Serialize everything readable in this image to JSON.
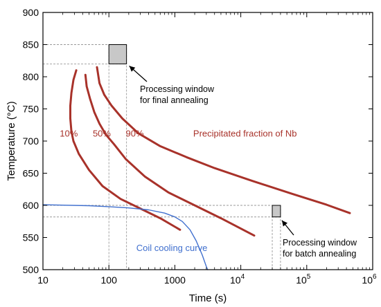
{
  "chart_data": {
    "type": "line",
    "xlabel": "Time (s)",
    "ylabel": "Temperature (°C)",
    "xscale": "log",
    "xlim": [
      10,
      1000000
    ],
    "ylim": [
      500,
      900
    ],
    "grid": false,
    "x_ticks": [
      {
        "value": 10,
        "label": "10"
      },
      {
        "value": 100,
        "label": "100"
      },
      {
        "value": 1000,
        "label": "1000"
      },
      {
        "value": 10000,
        "label": "10",
        "exp": "4"
      },
      {
        "value": 100000,
        "label": "10",
        "exp": "5"
      },
      {
        "value": 1000000,
        "label": "10",
        "exp": "6"
      }
    ],
    "y_ticks": [
      500,
      550,
      600,
      650,
      700,
      750,
      800,
      850,
      900
    ],
    "colors": {
      "precipitation": "#a8322a",
      "cooling": "#3f6fce",
      "box": "#c8c8c8",
      "dashed": "#999999"
    },
    "series": [
      {
        "name": "10%",
        "color": "#a8322a",
        "points": [
          [
            32,
            810
          ],
          [
            29,
            795
          ],
          [
            27,
            775
          ],
          [
            26,
            755
          ],
          [
            26,
            735
          ],
          [
            27,
            715
          ],
          [
            29,
            700
          ],
          [
            35,
            680
          ],
          [
            50,
            655
          ],
          [
            80,
            630
          ],
          [
            150,
            610
          ],
          [
            300,
            595
          ],
          [
            600,
            580
          ],
          [
            1200,
            562
          ]
        ]
      },
      {
        "name": "50%",
        "color": "#a8322a",
        "points": [
          [
            44,
            803
          ],
          [
            46,
            785
          ],
          [
            52,
            765
          ],
          [
            60,
            745
          ],
          [
            72,
            727
          ],
          [
            90,
            710
          ],
          [
            120,
            695
          ],
          [
            180,
            672
          ],
          [
            350,
            645
          ],
          [
            800,
            620
          ],
          [
            2000,
            600
          ],
          [
            5000,
            580
          ],
          [
            16000,
            553
          ]
        ]
      },
      {
        "name": "90%",
        "color": "#a8322a",
        "points": [
          [
            66,
            815
          ],
          [
            72,
            790
          ],
          [
            85,
            772
          ],
          [
            110,
            755
          ],
          [
            160,
            735
          ],
          [
            280,
            712
          ],
          [
            600,
            692
          ],
          [
            1500,
            675
          ],
          [
            4000,
            658
          ],
          [
            15000,
            638
          ],
          [
            60000,
            618
          ],
          [
            200000,
            601
          ],
          [
            450000,
            588
          ]
        ]
      },
      {
        "name": "Coil cooling curve",
        "color": "#3f6fce",
        "points": [
          [
            10,
            601
          ],
          [
            50,
            599.5
          ],
          [
            100,
            598
          ],
          [
            200,
            596
          ],
          [
            400,
            593
          ],
          [
            700,
            588
          ],
          [
            1000,
            582
          ],
          [
            1300,
            575
          ],
          [
            1700,
            562
          ],
          [
            2100,
            545
          ],
          [
            2600,
            523
          ],
          [
            3000,
            505
          ],
          [
            3150,
            500
          ]
        ]
      }
    ],
    "annotations": {
      "curve_labels": [
        {
          "text": "10%",
          "x": 18,
          "y": 707
        },
        {
          "text": "50%",
          "x": 57,
          "y": 707
        },
        {
          "text": "90%",
          "x": 180,
          "y": 707
        },
        {
          "text": "Precipitated fraction of Nb",
          "x": 1900,
          "y": 707
        }
      ],
      "cooling_label": {
        "text": "Coil cooling curve",
        "x": 260,
        "y": 529
      },
      "final_window": {
        "t_range": [
          100,
          185
        ],
        "temp_range": [
          820,
          850
        ],
        "text_line1": "Processing window",
        "text_line2": "for final annealing"
      },
      "batch_window": {
        "t_range": [
          30000,
          40000
        ],
        "temp_range": [
          582,
          600
        ],
        "text_line1": "Processing window",
        "text_line2": "for batch annealing"
      }
    }
  }
}
